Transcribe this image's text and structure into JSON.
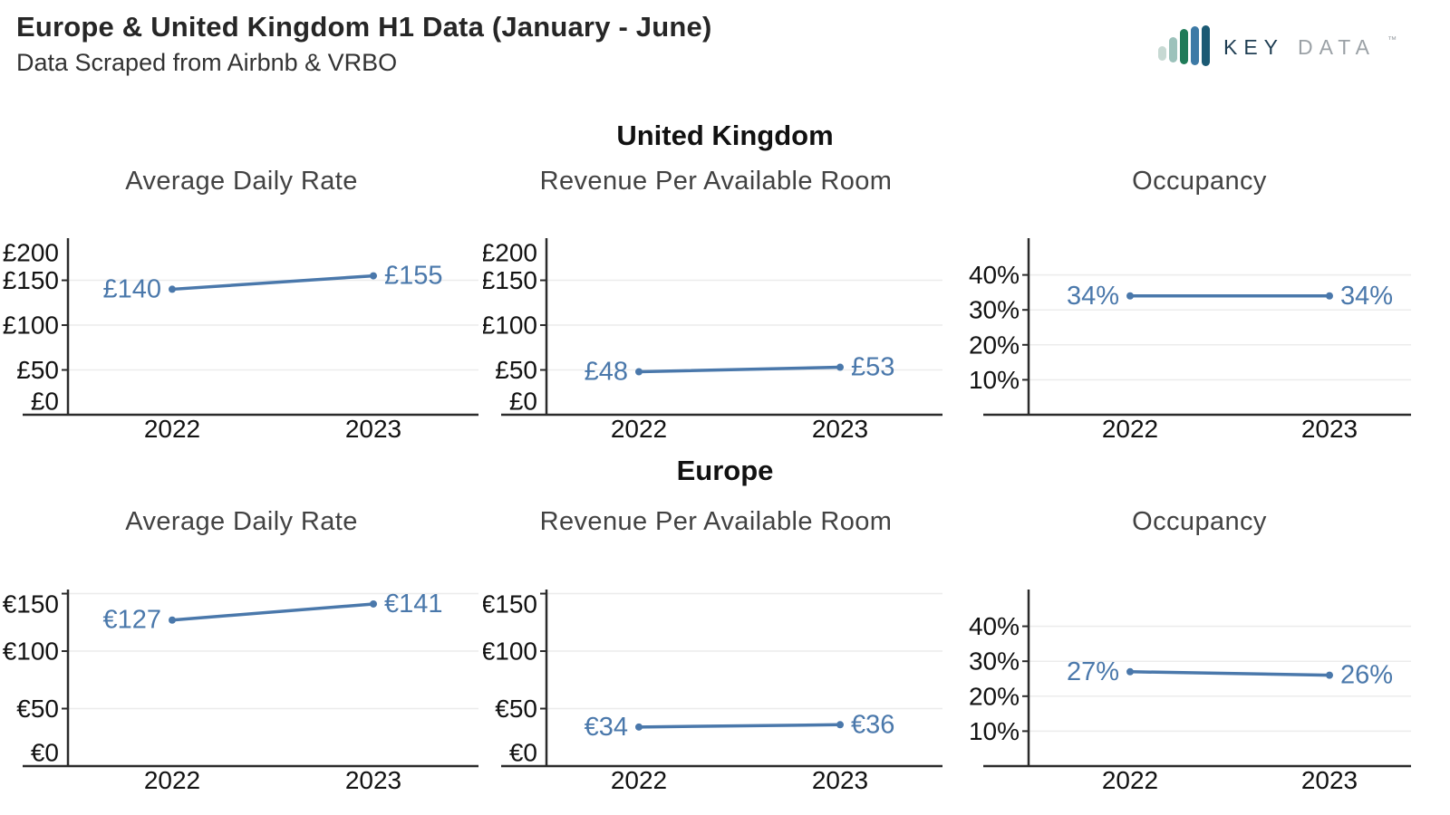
{
  "header": {
    "title": "Europe & United Kingdom H1 Data (January - June)",
    "subtitle": "Data Scraped from Airbnb & VRBO"
  },
  "logo": {
    "brand_key": "KEY",
    "brand_data": "DATA",
    "tm": "™",
    "bar_colors": [
      "#c7d9d3",
      "#9cc2bb",
      "#1f7b58",
      "#3d7aa6",
      "#1c5a74"
    ],
    "key_color": "#1e3d52",
    "data_color": "#9ba1a6"
  },
  "colors": {
    "series": "#4a78ab",
    "grid": "#ececec",
    "axis": "#2b2b2b",
    "tick_label": "#121212",
    "chart_title": "#424242"
  },
  "sections": [
    {
      "label": "United Kingdom"
    },
    {
      "label": "Europe"
    }
  ],
  "chart_data": [
    {
      "section": "United Kingdom",
      "title": "Average Daily Rate",
      "type": "line",
      "x": [
        "2022",
        "2023"
      ],
      "values": [
        140,
        155
      ],
      "point_labels": [
        "£140",
        "£155"
      ],
      "label_sides": [
        "left",
        "right"
      ],
      "ytick_values": [
        0,
        50,
        100,
        150,
        200
      ],
      "ytick_labels": [
        "£0",
        "£50",
        "£100",
        "£150",
        "£200"
      ],
      "ymin": 0,
      "ymax": 195,
      "grid": true,
      "legend": "none"
    },
    {
      "section": "United Kingdom",
      "title": "Revenue Per Available Room",
      "type": "line",
      "x": [
        "2022",
        "2023"
      ],
      "values": [
        48,
        53
      ],
      "point_labels": [
        "£48",
        "£53"
      ],
      "label_sides": [
        "left",
        "right"
      ],
      "ytick_values": [
        0,
        50,
        100,
        150,
        200
      ],
      "ytick_labels": [
        "£0",
        "£50",
        "£100",
        "£150",
        "£200"
      ],
      "ymin": 0,
      "ymax": 195,
      "grid": true,
      "legend": "none"
    },
    {
      "section": "United Kingdom",
      "title": "Occupancy",
      "type": "line",
      "x": [
        "2022",
        "2023"
      ],
      "values": [
        34,
        34
      ],
      "point_labels": [
        "34%",
        "34%"
      ],
      "label_sides": [
        "left",
        "right"
      ],
      "ytick_values": [
        10,
        20,
        30,
        40
      ],
      "ytick_labels": [
        "10%",
        "20%",
        "30%",
        "40%"
      ],
      "ymin": 0,
      "ymax": 50,
      "grid": true,
      "legend": "none"
    },
    {
      "section": "Europe",
      "title": "Average Daily Rate",
      "type": "line",
      "x": [
        "2022",
        "2023"
      ],
      "values": [
        127,
        141
      ],
      "point_labels": [
        "€127",
        "€141"
      ],
      "label_sides": [
        "left",
        "right"
      ],
      "ytick_values": [
        0,
        50,
        100,
        150
      ],
      "ytick_labels": [
        "€0",
        "€50",
        "€100",
        "€150"
      ],
      "ymin": 0,
      "ymax": 152,
      "grid": true,
      "legend": "none"
    },
    {
      "section": "Europe",
      "title": "Revenue Per Available Room",
      "type": "line",
      "x": [
        "2022",
        "2023"
      ],
      "values": [
        34,
        36
      ],
      "point_labels": [
        "€34",
        "€36"
      ],
      "label_sides": [
        "left",
        "right"
      ],
      "ytick_values": [
        0,
        50,
        100,
        150
      ],
      "ytick_labels": [
        "€0",
        "€50",
        "€100",
        "€150"
      ],
      "ymin": 0,
      "ymax": 152,
      "grid": true,
      "legend": "none"
    },
    {
      "section": "Europe",
      "title": "Occupancy",
      "type": "line",
      "x": [
        "2022",
        "2023"
      ],
      "values": [
        27,
        26
      ],
      "point_labels": [
        "27%",
        "26%"
      ],
      "label_sides": [
        "left",
        "right"
      ],
      "ytick_values": [
        10,
        20,
        30,
        40
      ],
      "ytick_labels": [
        "10%",
        "20%",
        "30%",
        "40%"
      ],
      "ymin": 0,
      "ymax": 50,
      "grid": true,
      "legend": "none"
    }
  ]
}
